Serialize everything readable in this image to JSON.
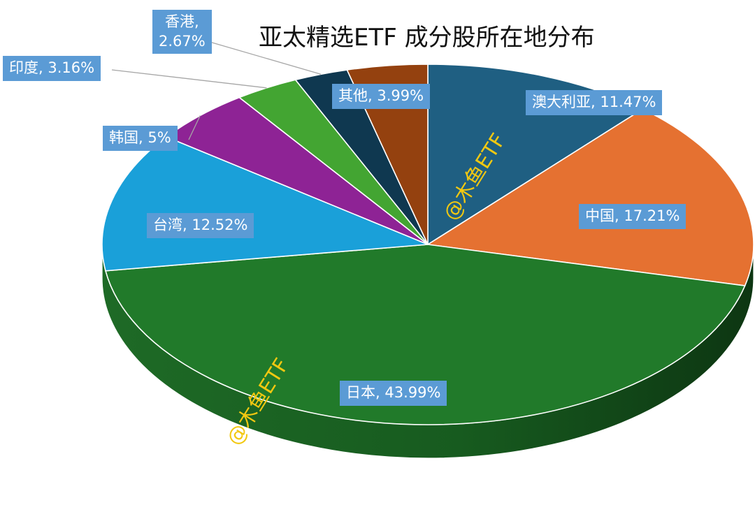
{
  "chart_data": {
    "type": "pie",
    "title": "亚太精选ETF 成分股所在地分布",
    "slices": [
      {
        "label": "澳大利亚, 11.47%",
        "name": "澳大利亚",
        "value": 11.47,
        "color": "#1f5f82"
      },
      {
        "label": "中国, 17.21%",
        "name": "中国",
        "value": 17.21,
        "color": "#e57131"
      },
      {
        "label": "日本, 43.99%",
        "name": "日本",
        "value": 43.99,
        "color": "#217a2a"
      },
      {
        "label": "台湾, 12.52%",
        "name": "台湾",
        "value": 12.52,
        "color": "#1aa0d9"
      },
      {
        "label": "韩国, 5%",
        "name": "韩国",
        "value": 5,
        "color": "#8e2395"
      },
      {
        "label": "印度, 3.16%",
        "name": "印度",
        "value": 3.16,
        "color": "#43a532"
      },
      {
        "label": "香港,\n2.67%",
        "name": "香港",
        "value": 2.67,
        "color": "#0f3850"
      },
      {
        "label": "其他, 3.99%",
        "name": "其他",
        "value": 3.99,
        "color": "#94410f"
      }
    ],
    "label_fill": "#5b9bd5",
    "watermark": "@木鱼ETF",
    "watermark_color": "#f2c811"
  }
}
